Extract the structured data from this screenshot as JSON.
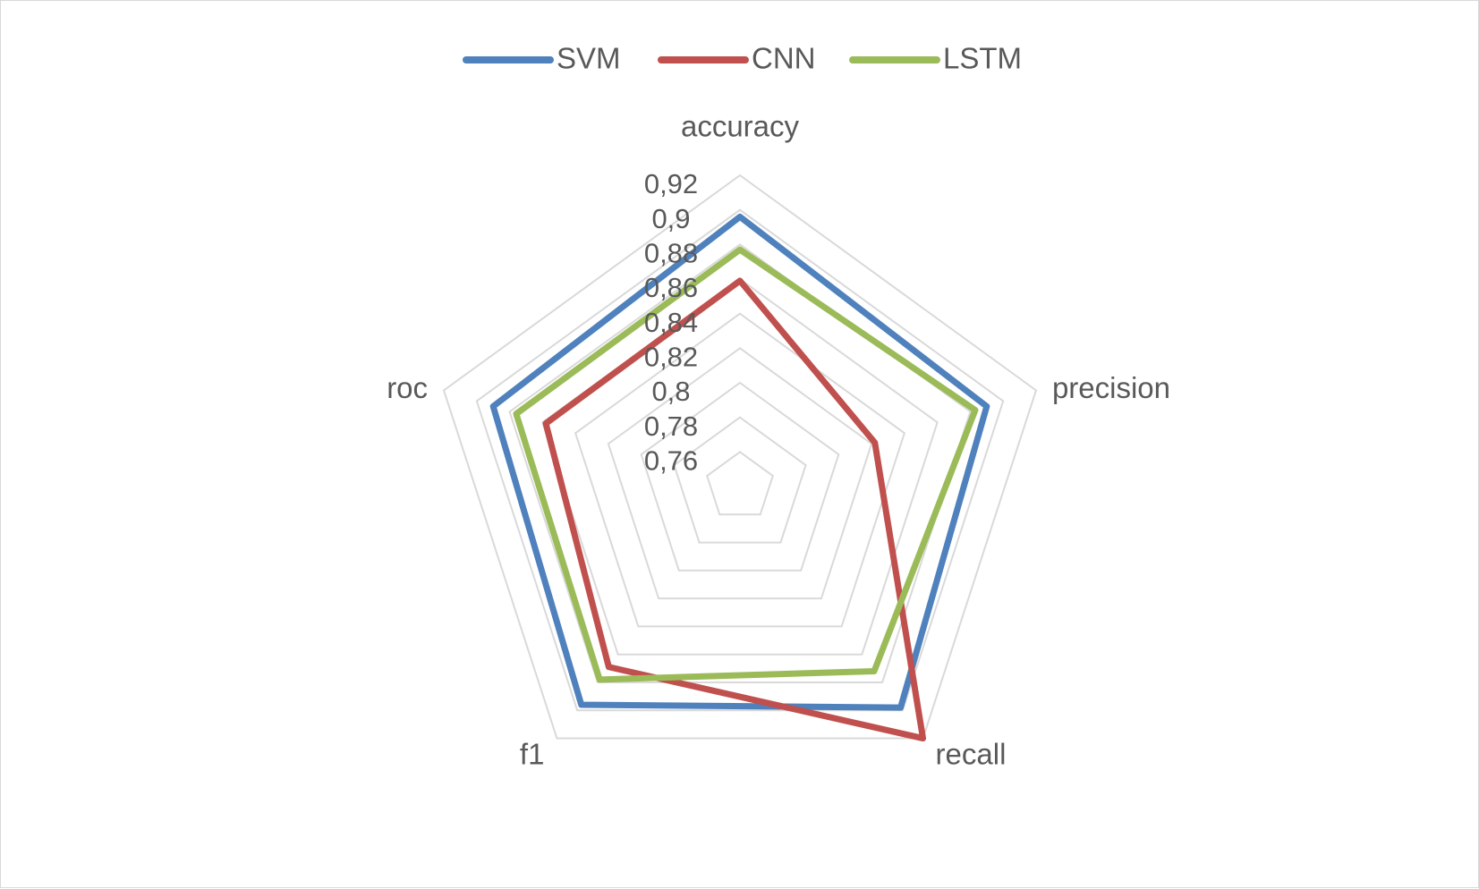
{
  "chart_data": {
    "type": "radar",
    "categories": [
      "accuracy",
      "precision",
      "recall",
      "f1",
      "roc"
    ],
    "rlim": [
      0.74,
      0.92
    ],
    "tick_labels": [
      "0,76",
      "0,78",
      "0,8",
      "0,82",
      "0,84",
      "0,86",
      "0,88",
      "0,9",
      "0,92"
    ],
    "ticks": [
      0.76,
      0.78,
      0.8,
      0.82,
      0.84,
      0.86,
      0.88,
      0.9,
      0.92
    ],
    "grid": true,
    "legend_position": "top",
    "series": [
      {
        "name": "SVM",
        "color": "#4f81bd",
        "values": [
          0.896,
          0.89,
          0.898,
          0.896,
          0.89
        ]
      },
      {
        "name": "CNN",
        "color": "#c0504d",
        "values": [
          0.859,
          0.822,
          0.92,
          0.869,
          0.858
        ]
      },
      {
        "name": "LSTM",
        "color": "#9bbb59",
        "values": [
          0.877,
          0.883,
          0.872,
          0.878,
          0.876
        ]
      }
    ]
  }
}
